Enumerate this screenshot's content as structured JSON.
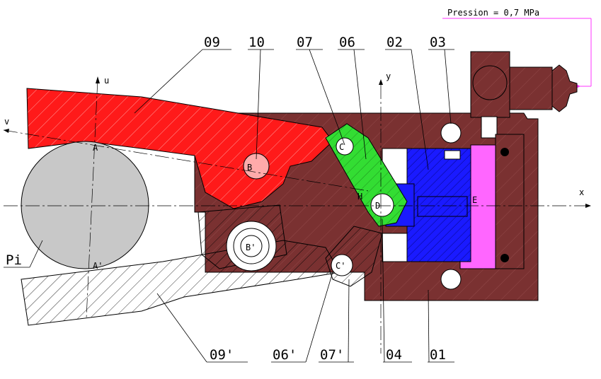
{
  "pressure_label": "Pression = 0,7 MPa",
  "part_labels": {
    "p09": "09",
    "p10": "10",
    "p07": "07",
    "p06": "06",
    "p02": "02",
    "p03": "03",
    "p09b": "09'",
    "p06b": "06'",
    "p07b": "07'",
    "p04": "04",
    "p01": "01",
    "pi": "Pi"
  },
  "axes": {
    "x": "x",
    "y": "y",
    "u": "u",
    "v": "v"
  },
  "points": {
    "A": "A",
    "A_prime": "A'",
    "B": "B",
    "B_prime": "B'",
    "C": "C",
    "C_prime": "C'",
    "D": "D",
    "E": "E",
    "H": "H"
  },
  "colors": {
    "frame": "#7a3131",
    "red_arm": "#ff1a1a",
    "green_link": "#33dd33",
    "blue_piston": "#0000ff",
    "pink_chamber": "#ff66ff",
    "roller": "#c8c8c8",
    "hatch_line": "#000000"
  }
}
